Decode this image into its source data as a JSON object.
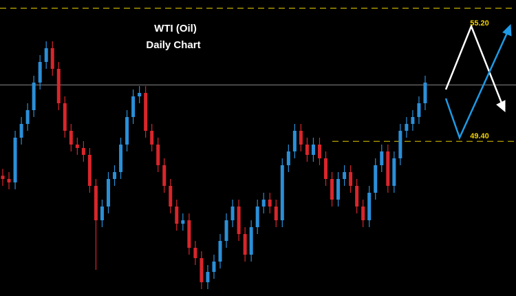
{
  "chart_data": {
    "type": "candlestick",
    "title": "WTI (Oil)",
    "subtitle": "Daily Chart",
    "ylim": [
      42.66,
      55.56
    ],
    "up_color": "#2b8fd8",
    "down_color": "#d8262b",
    "reference_line": 51.86,
    "levels": [
      {
        "value": 55.2,
        "label": "55.20"
      },
      {
        "value": 49.4,
        "label": "49.40"
      }
    ],
    "open": [
      47.9,
      47.76,
      47.61,
      49.56,
      50.16,
      50.76,
      51.96,
      52.86,
      53.46,
      52.56,
      51.06,
      49.86,
      49.26,
      49.11,
      48.81,
      47.46,
      45.96,
      46.56,
      47.76,
      48.06,
      49.26,
      50.46,
      51.36,
      51.51,
      49.86,
      49.26,
      48.36,
      47.46,
      46.56,
      45.81,
      45.96,
      44.76,
      44.31,
      43.26,
      43.71,
      44.16,
      45.06,
      45.96,
      46.56,
      45.36,
      44.46,
      45.66,
      46.56,
      46.86,
      46.56,
      45.96,
      48.36,
      48.96,
      49.86,
      49.26,
      48.81,
      49.26,
      48.66,
      47.76,
      46.86,
      47.76,
      48.06,
      47.46,
      46.56,
      45.96,
      47.16,
      48.36,
      48.96,
      47.46,
      48.66,
      49.86,
      50.16,
      50.46,
      51.06
    ],
    "high": [
      48.2,
      48.06,
      49.86,
      50.46,
      51.06,
      52.26,
      53.16,
      53.76,
      53.76,
      52.86,
      51.36,
      50.16,
      49.56,
      49.41,
      49.11,
      47.76,
      46.86,
      48.06,
      48.36,
      49.56,
      50.76,
      51.66,
      51.81,
      51.81,
      50.16,
      49.56,
      48.66,
      47.76,
      46.86,
      46.26,
      46.26,
      45.06,
      44.61,
      44.01,
      44.46,
      45.36,
      46.26,
      46.86,
      46.86,
      45.66,
      45.96,
      46.86,
      47.16,
      47.16,
      46.86,
      48.66,
      49.26,
      50.16,
      50.16,
      49.56,
      49.56,
      49.56,
      48.96,
      48.06,
      48.06,
      48.36,
      48.36,
      47.76,
      46.86,
      47.46,
      48.66,
      49.26,
      49.26,
      48.96,
      50.16,
      50.46,
      50.76,
      51.36,
      52.26
    ],
    "low": [
      47.46,
      47.31,
      47.31,
      49.26,
      49.86,
      50.46,
      51.66,
      52.56,
      52.26,
      50.76,
      49.56,
      48.96,
      48.81,
      48.51,
      47.16,
      43.8,
      45.66,
      46.26,
      47.46,
      47.76,
      48.96,
      50.16,
      51.06,
      49.56,
      48.96,
      48.06,
      47.16,
      46.26,
      45.51,
      45.51,
      44.46,
      44.01,
      42.96,
      42.96,
      43.41,
      43.86,
      44.76,
      45.66,
      45.06,
      44.16,
      44.16,
      45.36,
      46.26,
      46.26,
      45.66,
      45.66,
      48.06,
      48.66,
      48.96,
      48.51,
      48.51,
      48.36,
      47.46,
      46.56,
      46.56,
      47.46,
      47.16,
      46.26,
      45.66,
      45.66,
      46.86,
      48.06,
      47.16,
      47.16,
      48.36,
      49.56,
      49.86,
      50.16,
      50.76
    ],
    "close": [
      47.76,
      47.61,
      49.56,
      50.16,
      50.76,
      51.96,
      52.86,
      53.46,
      52.56,
      51.06,
      49.86,
      49.26,
      49.11,
      48.81,
      47.46,
      45.96,
      46.56,
      47.76,
      48.06,
      49.26,
      50.46,
      51.36,
      51.51,
      49.86,
      49.26,
      48.36,
      47.46,
      46.56,
      45.81,
      45.96,
      44.76,
      44.31,
      43.26,
      43.71,
      44.16,
      45.06,
      45.96,
      46.56,
      45.36,
      44.46,
      45.66,
      46.56,
      46.86,
      46.56,
      45.96,
      48.36,
      48.96,
      49.86,
      49.26,
      48.81,
      49.26,
      48.66,
      47.76,
      46.86,
      47.76,
      48.06,
      47.46,
      46.56,
      45.96,
      47.16,
      48.36,
      48.96,
      47.46,
      48.66,
      49.86,
      50.16,
      50.46,
      51.06,
      51.96
    ]
  }
}
